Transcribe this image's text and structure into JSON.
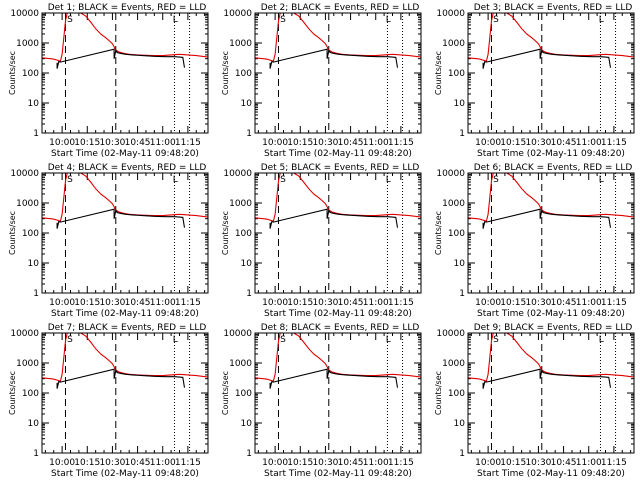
{
  "chart_data": {
    "type": "line",
    "layout": "3x3 grid",
    "x_tick_labels": [
      "10:00",
      "10:15",
      "10:30",
      "10:45",
      "11:00",
      "11:15"
    ],
    "x_tick_minutes": [
      0,
      15,
      30,
      45,
      60,
      75
    ],
    "xlim_minutes": [
      -12,
      87
    ],
    "xlabel": "Start Time (02-May-11 09:48:20)",
    "ylabel": "Counts/sec",
    "y_scale": "log",
    "ylim": [
      1,
      10000
    ],
    "y_tick_labels": [
      "1",
      "10",
      "100",
      "1000",
      "10000"
    ],
    "y_tick_values": [
      1,
      10,
      100,
      1000,
      10000
    ],
    "markers": {
      "dashed_minutes": [
        2,
        32
      ],
      "dotted_minutes": [
        67,
        76
      ],
      "label_S_minute": 3,
      "label_S_text": "S",
      "label_L_minute": 66,
      "label_L_text": "L"
    },
    "panels": [
      {
        "id": 1,
        "title": "Det 1; BLACK = Events, RED = LLD"
      },
      {
        "id": 2,
        "title": "Det 2; BLACK = Events, RED = LLD"
      },
      {
        "id": 3,
        "title": "Det 3; BLACK = Events, RED = LLD"
      },
      {
        "id": 4,
        "title": "Det 4; BLACK = Events, RED = LLD"
      },
      {
        "id": 5,
        "title": "Det 5; BLACK = Events, RED = LLD"
      },
      {
        "id": 6,
        "title": "Det 6; BLACK = Events, RED = LLD"
      },
      {
        "id": 7,
        "title": "Det 7; BLACK = Events, RED = LLD"
      },
      {
        "id": 8,
        "title": "Det 8; BLACK = Events, RED = LLD"
      },
      {
        "id": 9,
        "title": "Det 9; BLACK = Events, RED = LLD"
      }
    ],
    "series": [
      {
        "name": "LLD",
        "color": "#e00000",
        "x_minutes": [
          -12,
          -5,
          -1,
          0,
          1,
          2,
          3,
          5,
          7,
          9,
          11,
          14,
          17,
          20,
          23,
          26,
          28,
          30,
          31,
          32,
          34,
          37,
          40,
          45,
          50,
          55,
          60,
          65,
          70,
          75,
          80,
          87
        ],
        "y": [
          320,
          290,
          250,
          420,
          1500,
          5500,
          10000,
          10000,
          10000,
          10000,
          10000,
          8000,
          5000,
          3000,
          2000,
          1500,
          1200,
          950,
          750,
          580,
          500,
          450,
          420,
          400,
          390,
          380,
          380,
          400,
          420,
          400,
          380,
          340
        ]
      },
      {
        "name": "Events",
        "color": "#000000",
        "x_minutes": [
          -3,
          -3,
          -2,
          -1,
          31,
          31,
          32,
          33,
          35,
          38,
          42,
          48,
          55,
          62,
          67,
          70,
          72,
          73
        ],
        "y": [
          220,
          140,
          240,
          230,
          620,
          300,
          560,
          480,
          450,
          420,
          400,
          380,
          360,
          350,
          350,
          340,
          330,
          150
        ]
      }
    ]
  }
}
